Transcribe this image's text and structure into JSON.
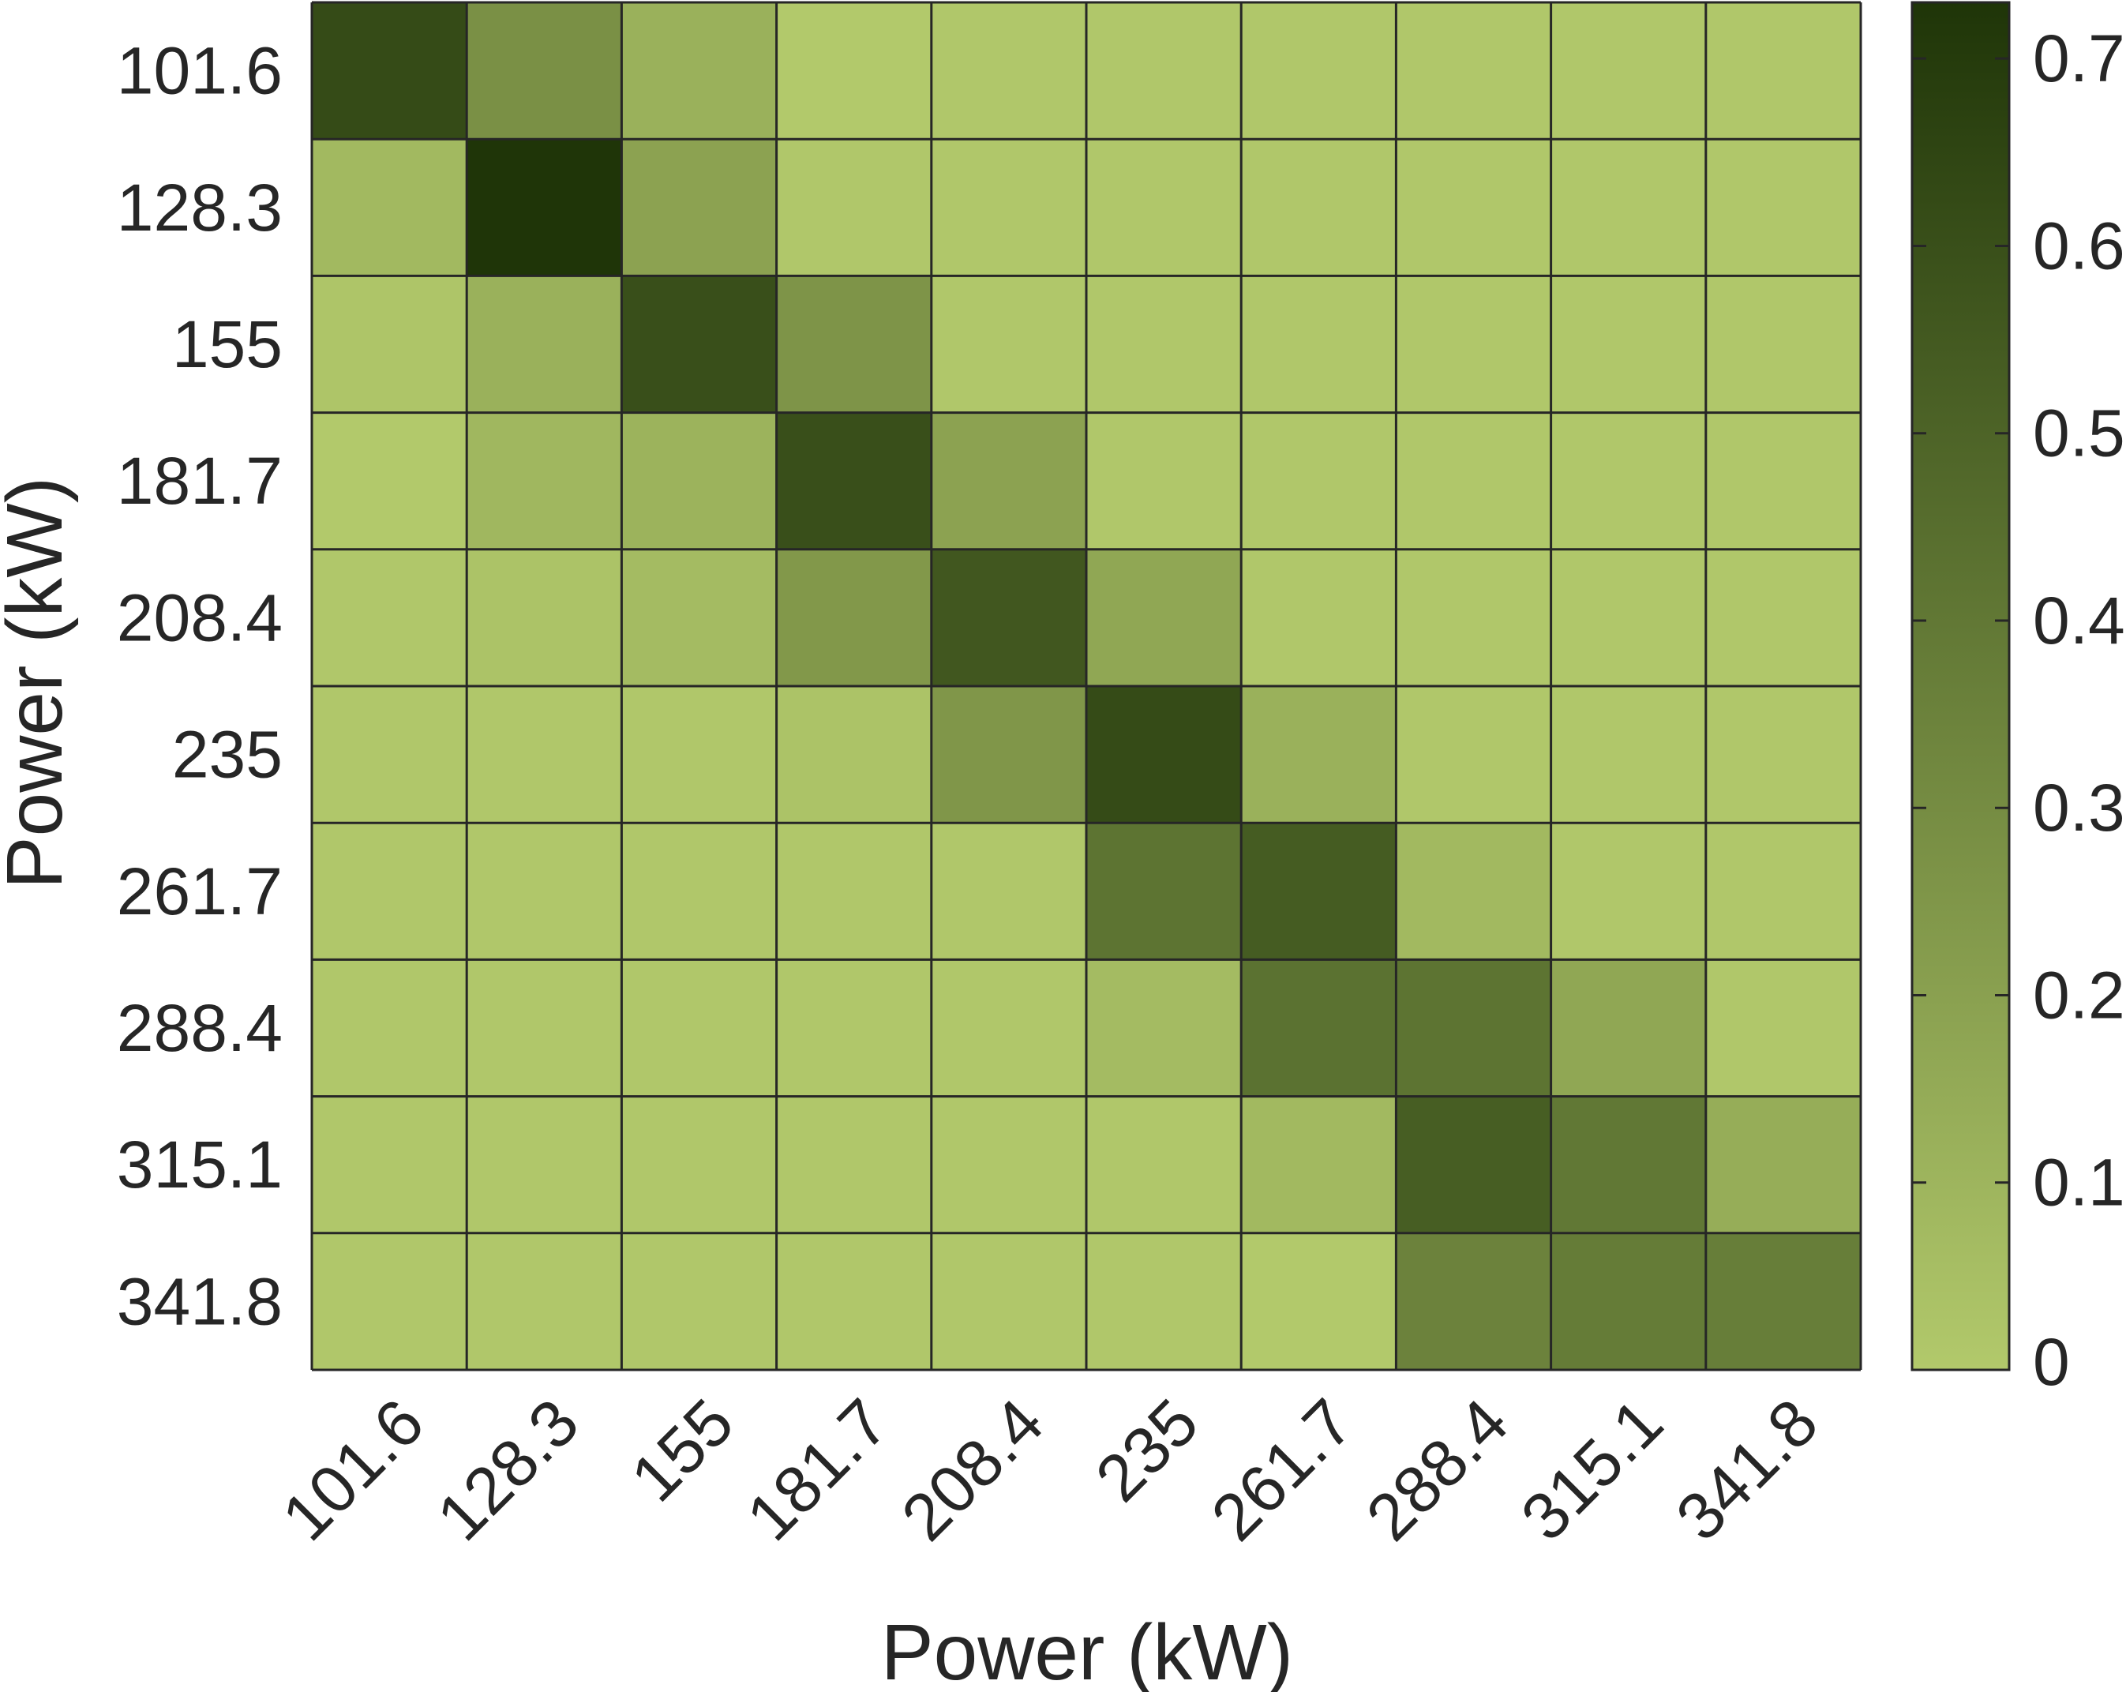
{
  "chart_data": {
    "type": "heatmap",
    "title": "",
    "xlabel": "Power (kW)",
    "ylabel": "Power (kW)",
    "x_categories": [
      "101.6",
      "128.3",
      "155",
      "181.7",
      "208.4",
      "235",
      "261.7",
      "288.4",
      "315.1",
      "341.8"
    ],
    "y_categories": [
      "101.6",
      "128.3",
      "155",
      "181.7",
      "208.4",
      "235",
      "261.7",
      "288.4",
      "315.1",
      "341.8"
    ],
    "values": [
      [
        0.62,
        0.28,
        0.12,
        0.0,
        0.01,
        0.01,
        0.01,
        0.01,
        0.01,
        0.01
      ],
      [
        0.08,
        0.73,
        0.19,
        0.01,
        0.01,
        0.01,
        0.01,
        0.01,
        0.01,
        0.01
      ],
      [
        0.02,
        0.12,
        0.6,
        0.26,
        0.01,
        0.01,
        0.01,
        0.01,
        0.01,
        0.01
      ],
      [
        0.0,
        0.09,
        0.11,
        0.6,
        0.19,
        0.01,
        0.01,
        0.01,
        0.01,
        0.01
      ],
      [
        0.01,
        0.03,
        0.07,
        0.24,
        0.56,
        0.17,
        0.01,
        0.01,
        0.01,
        0.01
      ],
      [
        0.01,
        0.01,
        0.01,
        0.03,
        0.25,
        0.62,
        0.12,
        0.01,
        0.01,
        0.01
      ],
      [
        0.01,
        0.01,
        0.01,
        0.01,
        0.01,
        0.42,
        0.54,
        0.08,
        0.01,
        0.01
      ],
      [
        0.01,
        0.01,
        0.01,
        0.01,
        0.01,
        0.07,
        0.43,
        0.42,
        0.17,
        0.01
      ],
      [
        0.01,
        0.01,
        0.01,
        0.01,
        0.01,
        0.01,
        0.08,
        0.53,
        0.4,
        0.14
      ],
      [
        0.01,
        0.01,
        0.01,
        0.01,
        0.01,
        0.01,
        0.0,
        0.35,
        0.38,
        0.37
      ]
    ],
    "colorbar": {
      "min": 0,
      "max": 0.73,
      "ticks": [
        0,
        0.1,
        0.2,
        0.3,
        0.4,
        0.5,
        0.6,
        0.7
      ],
      "tick_labels": [
        "0",
        "0.1",
        "0.2",
        "0.3",
        "0.4",
        "0.5",
        "0.6",
        "0.7"
      ],
      "color_low": "#b2c96b",
      "color_high": "#1f3508"
    },
    "grid": true,
    "legend": "colorbar-right"
  },
  "colors": {
    "grid_line": "#262626",
    "text": "#262626"
  }
}
